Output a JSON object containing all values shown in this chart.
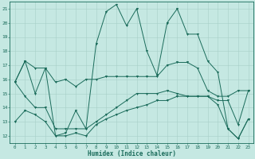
{
  "xlabel": "Humidex (Indice chaleur)",
  "bg_color": "#c5e8e2",
  "grid_color": "#a8cfc8",
  "line_color": "#1a6b5a",
  "x_values": [
    0,
    1,
    2,
    3,
    4,
    5,
    6,
    7,
    8,
    9,
    10,
    11,
    12,
    13,
    14,
    15,
    16,
    17,
    18,
    19,
    20,
    21,
    22,
    23
  ],
  "line1": [
    15.8,
    17.3,
    15.0,
    16.8,
    12.0,
    12.2,
    13.8,
    12.5,
    18.5,
    20.8,
    21.3,
    19.8,
    21.0,
    18.0,
    16.3,
    20.0,
    21.0,
    19.2,
    19.2,
    17.3,
    16.5,
    12.5,
    11.8,
    13.2
  ],
  "line2": [
    15.8,
    17.3,
    16.8,
    16.8,
    15.8,
    16.0,
    15.5,
    16.0,
    16.0,
    16.2,
    16.2,
    16.2,
    16.2,
    16.2,
    16.2,
    17.0,
    17.2,
    17.2,
    16.8,
    15.2,
    14.8,
    14.8,
    15.2,
    15.2
  ],
  "line3": [
    15.8,
    14.8,
    14.0,
    14.0,
    12.5,
    12.5,
    12.5,
    12.5,
    13.0,
    13.5,
    14.0,
    14.5,
    15.0,
    15.0,
    15.0,
    15.2,
    15.0,
    14.8,
    14.8,
    14.8,
    14.5,
    14.5,
    12.8,
    15.2
  ],
  "line4": [
    13.0,
    13.8,
    13.5,
    13.0,
    12.0,
    12.0,
    12.2,
    12.0,
    12.8,
    13.2,
    13.5,
    13.8,
    14.0,
    14.2,
    14.5,
    14.5,
    14.8,
    14.8,
    14.8,
    14.8,
    14.2,
    12.5,
    11.8,
    13.2
  ],
  "ylim": [
    11.5,
    21.5
  ],
  "xlim": [
    -0.5,
    23.5
  ],
  "yticks": [
    12,
    13,
    14,
    15,
    16,
    17,
    18,
    19,
    20,
    21
  ],
  "xticks": [
    0,
    1,
    2,
    3,
    4,
    5,
    6,
    7,
    8,
    9,
    10,
    11,
    12,
    13,
    14,
    15,
    16,
    17,
    18,
    19,
    20,
    21,
    22,
    23
  ],
  "figsize": [
    3.2,
    2.0
  ],
  "dpi": 100
}
